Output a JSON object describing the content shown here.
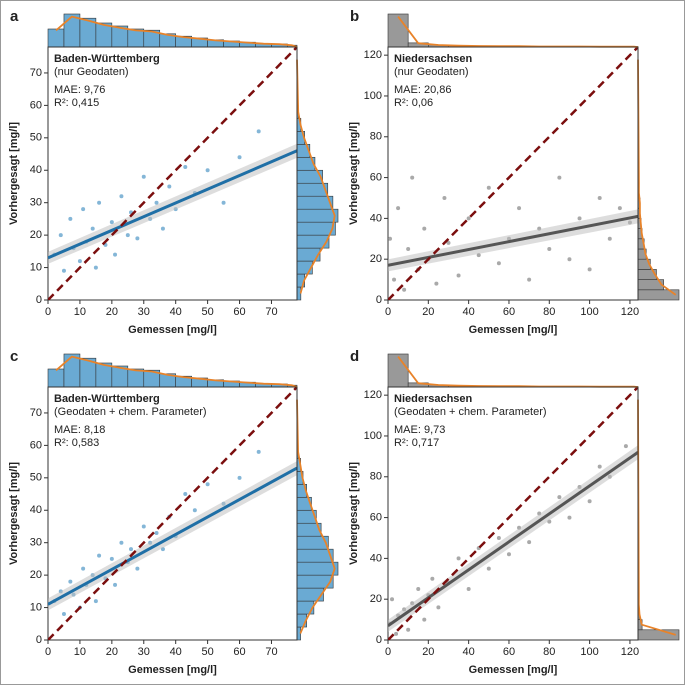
{
  "chart_data": [
    {
      "type": "scatter",
      "panel": "a",
      "title": "Baden-Württemberg",
      "subtitle": "(nur Geodaten)",
      "annotations": [
        "MAE: 9,76",
        "R²: 0,415"
      ],
      "xlabel": "Gemessen [mg/l]",
      "ylabel": "Vorhergesagt [mg/l]",
      "xlim": [
        0,
        78
      ],
      "ylim": [
        0,
        78
      ],
      "xticks": [
        0,
        10,
        20,
        30,
        40,
        50,
        60,
        70
      ],
      "yticks": [
        0,
        10,
        20,
        30,
        40,
        50,
        60,
        70
      ],
      "color": "#5b9dc9",
      "fit_color": "#1f6fa6",
      "points": {
        "x": [
          2,
          4,
          5,
          7,
          8,
          10,
          11,
          12,
          14,
          15,
          16,
          18,
          20,
          21,
          23,
          25,
          26,
          28,
          30,
          32,
          34,
          36,
          38,
          40,
          43,
          46,
          50,
          55,
          60,
          66
        ],
        "y": [
          14,
          20,
          9,
          25,
          16,
          12,
          28,
          18,
          22,
          10,
          30,
          17,
          24,
          14,
          32,
          20,
          27,
          19,
          38,
          25,
          30,
          22,
          35,
          28,
          41,
          33,
          40,
          30,
          44,
          52
        ]
      },
      "fit": {
        "x": [
          0,
          78
        ],
        "y": [
          13,
          46
        ]
      },
      "x_hist": {
        "bins": [
          0,
          5,
          10,
          15,
          20,
          25,
          30,
          35,
          40,
          45,
          50,
          55,
          60,
          65,
          70,
          75,
          78
        ],
        "counts": [
          30,
          55,
          48,
          40,
          35,
          30,
          28,
          22,
          18,
          15,
          12,
          10,
          8,
          6,
          5,
          3
        ]
      },
      "y_hist": {
        "bins": [
          0,
          4,
          8,
          12,
          16,
          20,
          24,
          28,
          32,
          36,
          40,
          44,
          48,
          52,
          56,
          60
        ],
        "counts": [
          3,
          6,
          12,
          18,
          25,
          30,
          32,
          28,
          24,
          20,
          14,
          10,
          6,
          3,
          1
        ]
      }
    },
    {
      "type": "scatter",
      "panel": "b",
      "title": "Niedersachsen",
      "subtitle": "(nur Geodaten)",
      "annotations": [
        "MAE: 20,86",
        "R²: 0,06"
      ],
      "xlabel": "Gemessen [mg/l]",
      "ylabel": "Vorhergesagt [mg/l]",
      "xlim": [
        0,
        124
      ],
      "ylim": [
        0,
        124
      ],
      "xticks": [
        0,
        20,
        40,
        60,
        80,
        100,
        120
      ],
      "yticks": [
        0,
        20,
        40,
        60,
        80,
        100,
        120
      ],
      "color": "#8c8c8c",
      "fit_color": "#555555",
      "points": {
        "x": [
          1,
          3,
          5,
          8,
          10,
          12,
          15,
          18,
          20,
          24,
          28,
          30,
          35,
          40,
          45,
          50,
          55,
          60,
          65,
          70,
          75,
          80,
          85,
          90,
          95,
          100,
          105,
          110,
          115,
          120
        ],
        "y": [
          30,
          10,
          45,
          5,
          25,
          60,
          15,
          35,
          20,
          8,
          50,
          28,
          12,
          40,
          22,
          55,
          18,
          30,
          45,
          10,
          35,
          25,
          60,
          20,
          40,
          15,
          50,
          30,
          45,
          38
        ]
      },
      "fit": {
        "x": [
          0,
          124
        ],
        "y": [
          17,
          41
        ]
      },
      "x_hist": {
        "bins": [
          0,
          10,
          20,
          30,
          40,
          50,
          60,
          70,
          80,
          90,
          100,
          110,
          120,
          124
        ],
        "counts": [
          120,
          15,
          8,
          5,
          4,
          3,
          3,
          2,
          2,
          2,
          1,
          1,
          1
        ]
      },
      "y_hist": {
        "bins": [
          0,
          5,
          10,
          15,
          20,
          25,
          30,
          35,
          40,
          45,
          50,
          55,
          60
        ],
        "counts": [
          40,
          25,
          18,
          12,
          8,
          6,
          4,
          3,
          2,
          2,
          1,
          1
        ]
      }
    },
    {
      "type": "scatter",
      "panel": "c",
      "title": "Baden-Württemberg",
      "subtitle": "(Geodaten + chem. Parameter)",
      "annotations": [
        "MAE: 8,18",
        "R²: 0,583"
      ],
      "xlabel": "Gemessen [mg/l]",
      "ylabel": "Vorhergesagt [mg/l]",
      "xlim": [
        0,
        78
      ],
      "ylim": [
        0,
        78
      ],
      "xticks": [
        0,
        10,
        20,
        30,
        40,
        50,
        60,
        70
      ],
      "yticks": [
        0,
        10,
        20,
        30,
        40,
        50,
        60,
        70
      ],
      "color": "#5b9dc9",
      "fit_color": "#1f6fa6",
      "points": {
        "x": [
          2,
          4,
          5,
          7,
          8,
          10,
          11,
          12,
          14,
          15,
          16,
          18,
          20,
          21,
          23,
          25,
          26,
          28,
          30,
          32,
          34,
          36,
          38,
          40,
          43,
          46,
          50,
          55,
          60,
          66
        ],
        "y": [
          12,
          15,
          8,
          18,
          14,
          10,
          22,
          17,
          20,
          12,
          26,
          19,
          25,
          17,
          30,
          24,
          28,
          22,
          35,
          30,
          33,
          28,
          38,
          32,
          45,
          40,
          48,
          42,
          50,
          58
        ]
      },
      "fit": {
        "x": [
          0,
          78
        ],
        "y": [
          11,
          53
        ]
      },
      "x_hist": {
        "bins": [
          0,
          5,
          10,
          15,
          20,
          25,
          30,
          35,
          40,
          45,
          50,
          55,
          60,
          65,
          70,
          75,
          78
        ],
        "counts": [
          30,
          55,
          48,
          40,
          35,
          30,
          28,
          22,
          18,
          15,
          12,
          10,
          8,
          6,
          5,
          3
        ]
      },
      "y_hist": {
        "bins": [
          0,
          4,
          8,
          12,
          16,
          20,
          24,
          28,
          32,
          36,
          40,
          44,
          48,
          52,
          56,
          60
        ],
        "counts": [
          3,
          8,
          14,
          22,
          30,
          34,
          30,
          26,
          20,
          16,
          12,
          8,
          5,
          3,
          1
        ]
      }
    },
    {
      "type": "scatter",
      "panel": "d",
      "title": "Niedersachsen",
      "subtitle": "(Geodaten + chem. Parameter)",
      "annotations": [
        "MAE: 9,73",
        "R²: 0,717"
      ],
      "xlabel": "Gemessen [mg/l]",
      "ylabel": "Vorhergesagt [mg/l]",
      "xlim": [
        0,
        124
      ],
      "ylim": [
        0,
        124
      ],
      "xticks": [
        0,
        20,
        40,
        60,
        80,
        100,
        120
      ],
      "yticks": [
        0,
        20,
        40,
        60,
        80,
        100,
        120
      ],
      "color": "#8c8c8c",
      "fit_color": "#555555",
      "points": {
        "x": [
          1,
          2,
          4,
          5,
          8,
          10,
          12,
          15,
          18,
          20,
          22,
          25,
          30,
          35,
          40,
          45,
          50,
          55,
          60,
          65,
          70,
          75,
          80,
          85,
          90,
          95,
          100,
          105,
          110,
          118
        ],
        "y": [
          8,
          20,
          3,
          12,
          15,
          5,
          18,
          25,
          10,
          22,
          30,
          16,
          28,
          40,
          25,
          45,
          35,
          50,
          42,
          55,
          48,
          62,
          58,
          70,
          60,
          75,
          68,
          85,
          80,
          95
        ]
      },
      "fit": {
        "x": [
          0,
          124
        ],
        "y": [
          7,
          92
        ]
      },
      "x_hist": {
        "bins": [
          0,
          10,
          20,
          30,
          40,
          50,
          60,
          70,
          80,
          90,
          100,
          110,
          120,
          124
        ],
        "counts": [
          120,
          15,
          8,
          5,
          4,
          3,
          3,
          2,
          2,
          2,
          1,
          1,
          1
        ]
      },
      "y_hist": {
        "bins": [
          0,
          5,
          10,
          15,
          20,
          25
        ],
        "counts": [
          50,
          5,
          2,
          1,
          1
        ]
      }
    }
  ]
}
